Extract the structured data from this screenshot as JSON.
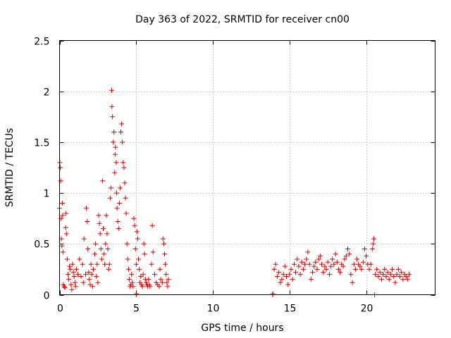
{
  "chart_data": {
    "type": "scatter",
    "title": "Day 363 of 2022, SRMTID for receiver cn00",
    "xlabel": "GPS time / hours",
    "ylabel": "SRMTID / TECUs",
    "xlim": [
      0,
      24.5
    ],
    "ylim": [
      0,
      2.5
    ],
    "xticks": [
      0,
      5,
      10,
      15,
      20
    ],
    "xtick_labels": [
      "0",
      "5",
      "10",
      "15",
      "20"
    ],
    "yticks": [
      0,
      0.5,
      1,
      1.5,
      2,
      2.5
    ],
    "ytick_labels": [
      "0",
      "0.5",
      "1",
      "1.5",
      "2",
      "2.5"
    ],
    "grid": true,
    "marker": "+",
    "series": [
      {
        "name": "cn00",
        "color": "#e00000",
        "points": [
          [
            0.0,
            0.85
          ],
          [
            0.02,
            1.3
          ],
          [
            0.05,
            1.25
          ],
          [
            0.08,
            1.12
          ],
          [
            0.1,
            0.75
          ],
          [
            0.12,
            0.55
          ],
          [
            0.15,
            0.48
          ],
          [
            0.18,
            0.9
          ],
          [
            0.2,
            0.78
          ],
          [
            0.22,
            0.42
          ],
          [
            0.25,
            0.1
          ],
          [
            0.3,
            0.08
          ],
          [
            0.35,
            0.07
          ],
          [
            0.4,
            0.66
          ],
          [
            0.42,
            0.8
          ],
          [
            0.45,
            0.6
          ],
          [
            0.5,
            0.35
          ],
          [
            0.55,
            0.2
          ],
          [
            0.6,
            0.15
          ],
          [
            0.65,
            0.28
          ],
          [
            0.7,
            0.25
          ],
          [
            0.75,
            0.1
          ],
          [
            0.8,
            0.05
          ],
          [
            0.85,
            0.3
          ],
          [
            0.9,
            0.22
          ],
          [
            0.95,
            0.18
          ],
          [
            1.0,
            0.12
          ],
          [
            1.05,
            0.08
          ],
          [
            1.1,
            0.25
          ],
          [
            1.2,
            0.2
          ],
          [
            1.3,
            0.35
          ],
          [
            1.4,
            0.18
          ],
          [
            1.5,
            0.3
          ],
          [
            1.55,
            0.12
          ],
          [
            1.6,
            0.55
          ],
          [
            1.7,
            0.2
          ],
          [
            1.75,
            0.85
          ],
          [
            1.8,
            0.72
          ],
          [
            1.85,
            0.45
          ],
          [
            1.9,
            0.22
          ],
          [
            1.95,
            0.15
          ],
          [
            2.0,
            0.1
          ],
          [
            2.05,
            0.3
          ],
          [
            2.1,
            0.2
          ],
          [
            2.15,
            0.08
          ],
          [
            2.2,
            0.25
          ],
          [
            2.3,
            0.4
          ],
          [
            2.35,
            0.5
          ],
          [
            2.4,
            0.18
          ],
          [
            2.45,
            0.3
          ],
          [
            2.5,
            0.12
          ],
          [
            2.55,
            0.78
          ],
          [
            2.6,
            0.7
          ],
          [
            2.65,
            0.6
          ],
          [
            2.7,
            0.45
          ],
          [
            2.75,
            0.35
          ],
          [
            2.8,
            1.12
          ],
          [
            2.85,
            0.65
          ],
          [
            2.9,
            0.4
          ],
          [
            2.95,
            0.3
          ],
          [
            3.0,
            0.5
          ],
          [
            3.05,
            0.78
          ],
          [
            3.1,
            0.6
          ],
          [
            3.15,
            0.45
          ],
          [
            3.2,
            0.25
          ],
          [
            3.25,
            0.3
          ],
          [
            3.3,
            0.95
          ],
          [
            3.35,
            1.05
          ],
          [
            3.4,
            2.01
          ],
          [
            3.42,
            1.85
          ],
          [
            3.45,
            1.75
          ],
          [
            3.5,
            1.5
          ],
          [
            3.55,
            1.6
          ],
          [
            3.6,
            1.2
          ],
          [
            3.62,
            1.38
          ],
          [
            3.65,
            1.45
          ],
          [
            3.7,
            1.3
          ],
          [
            3.72,
            1.0
          ],
          [
            3.75,
            0.85
          ],
          [
            3.8,
            0.72
          ],
          [
            3.85,
            0.65
          ],
          [
            3.9,
            0.9
          ],
          [
            3.95,
            1.05
          ],
          [
            4.0,
            1.6
          ],
          [
            4.05,
            1.68
          ],
          [
            4.1,
            1.5
          ],
          [
            4.15,
            1.3
          ],
          [
            4.2,
            1.25
          ],
          [
            4.25,
            1.1
          ],
          [
            4.3,
            0.95
          ],
          [
            4.35,
            0.8
          ],
          [
            4.4,
            0.5
          ],
          [
            4.45,
            0.35
          ],
          [
            4.5,
            0.25
          ],
          [
            4.55,
            0.15
          ],
          [
            4.6,
            0.08
          ],
          [
            4.65,
            0.1
          ],
          [
            4.7,
            0.2
          ],
          [
            4.75,
            0.12
          ],
          [
            4.8,
            0.08
          ],
          [
            4.85,
            0.75
          ],
          [
            4.9,
            0.68
          ],
          [
            4.95,
            0.45
          ],
          [
            5.0,
            0.3
          ],
          [
            5.05,
            0.62
          ],
          [
            5.1,
            0.55
          ],
          [
            5.15,
            0.35
          ],
          [
            5.2,
            0.25
          ],
          [
            5.25,
            0.12
          ],
          [
            5.3,
            0.18
          ],
          [
            5.35,
            0.1
          ],
          [
            5.4,
            0.08
          ],
          [
            5.45,
            0.2
          ],
          [
            5.5,
            0.5
          ],
          [
            5.55,
            0.4
          ],
          [
            5.6,
            0.15
          ],
          [
            5.65,
            0.12
          ],
          [
            5.7,
            0.1
          ],
          [
            5.75,
            0.08
          ],
          [
            5.8,
            0.15
          ],
          [
            5.85,
            0.1
          ],
          [
            5.9,
            0.08
          ],
          [
            6.0,
            0.3
          ],
          [
            6.05,
            0.68
          ],
          [
            6.1,
            0.42
          ],
          [
            6.2,
            0.2
          ],
          [
            6.3,
            0.12
          ],
          [
            6.4,
            0.1
          ],
          [
            6.5,
            0.08
          ],
          [
            6.55,
            0.25
          ],
          [
            6.6,
            0.15
          ],
          [
            6.7,
            0.12
          ],
          [
            6.75,
            0.55
          ],
          [
            6.8,
            0.5
          ],
          [
            6.85,
            0.4
          ],
          [
            6.9,
            0.3
          ],
          [
            6.95,
            0.2
          ],
          [
            7.0,
            0.12
          ],
          [
            7.05,
            0.08
          ],
          [
            7.1,
            0.15
          ],
          [
            5.0,
            0.0
          ],
          [
            5.02,
            0.01
          ],
          [
            13.9,
            0.0
          ],
          [
            13.92,
            0.01
          ],
          [
            14.0,
            0.25
          ],
          [
            14.1,
            0.3
          ],
          [
            14.2,
            0.18
          ],
          [
            14.3,
            0.22
          ],
          [
            14.4,
            0.12
          ],
          [
            14.5,
            0.15
          ],
          [
            14.6,
            0.2
          ],
          [
            14.7,
            0.28
          ],
          [
            14.8,
            0.18
          ],
          [
            14.9,
            0.1
          ],
          [
            15.0,
            0.2
          ],
          [
            15.1,
            0.25
          ],
          [
            15.2,
            0.15
          ],
          [
            15.3,
            0.3
          ],
          [
            15.4,
            0.22
          ],
          [
            15.5,
            0.35
          ],
          [
            15.6,
            0.28
          ],
          [
            15.7,
            0.2
          ],
          [
            15.8,
            0.32
          ],
          [
            15.9,
            0.25
          ],
          [
            16.0,
            0.3
          ],
          [
            16.1,
            0.35
          ],
          [
            16.2,
            0.42
          ],
          [
            16.3,
            0.3
          ],
          [
            16.4,
            0.15
          ],
          [
            16.5,
            0.22
          ],
          [
            16.6,
            0.28
          ],
          [
            16.7,
            0.32
          ],
          [
            16.8,
            0.25
          ],
          [
            16.9,
            0.35
          ],
          [
            17.0,
            0.38
          ],
          [
            17.1,
            0.3
          ],
          [
            17.2,
            0.22
          ],
          [
            17.3,
            0.28
          ],
          [
            17.4,
            0.25
          ],
          [
            17.5,
            0.32
          ],
          [
            17.6,
            0.2
          ],
          [
            17.7,
            0.28
          ],
          [
            17.8,
            0.35
          ],
          [
            17.9,
            0.3
          ],
          [
            18.0,
            0.4
          ],
          [
            18.1,
            0.32
          ],
          [
            18.2,
            0.25
          ],
          [
            18.3,
            0.22
          ],
          [
            18.4,
            0.3
          ],
          [
            18.5,
            0.28
          ],
          [
            18.6,
            0.35
          ],
          [
            18.7,
            0.38
          ],
          [
            18.8,
            0.45
          ],
          [
            18.9,
            0.4
          ],
          [
            19.0,
            0.2
          ],
          [
            19.1,
            0.12
          ],
          [
            19.2,
            0.3
          ],
          [
            19.3,
            0.25
          ],
          [
            19.4,
            0.35
          ],
          [
            19.5,
            0.3
          ],
          [
            19.6,
            0.28
          ],
          [
            19.7,
            0.25
          ],
          [
            19.8,
            0.32
          ],
          [
            19.9,
            0.45
          ],
          [
            20.0,
            0.38
          ],
          [
            20.1,
            0.3
          ],
          [
            20.2,
            0.25
          ],
          [
            20.3,
            0.3
          ],
          [
            20.4,
            0.45
          ],
          [
            20.45,
            0.5
          ],
          [
            20.5,
            0.55
          ],
          [
            20.55,
            0.0
          ],
          [
            20.6,
            0.2
          ],
          [
            20.7,
            0.25
          ],
          [
            20.8,
            0.18
          ],
          [
            20.9,
            0.22
          ],
          [
            21.0,
            0.15
          ],
          [
            21.1,
            0.2
          ],
          [
            21.2,
            0.25
          ],
          [
            21.3,
            0.18
          ],
          [
            21.4,
            0.22
          ],
          [
            21.5,
            0.15
          ],
          [
            21.6,
            0.2
          ],
          [
            21.7,
            0.25
          ],
          [
            21.8,
            0.18
          ],
          [
            21.9,
            0.12
          ],
          [
            22.0,
            0.2
          ],
          [
            22.1,
            0.25
          ],
          [
            22.2,
            0.18
          ],
          [
            22.3,
            0.22
          ],
          [
            22.4,
            0.15
          ],
          [
            22.5,
            0.2
          ],
          [
            22.6,
            0.18
          ],
          [
            22.7,
            0.15
          ],
          [
            22.8,
            0.2
          ]
        ]
      }
    ]
  }
}
